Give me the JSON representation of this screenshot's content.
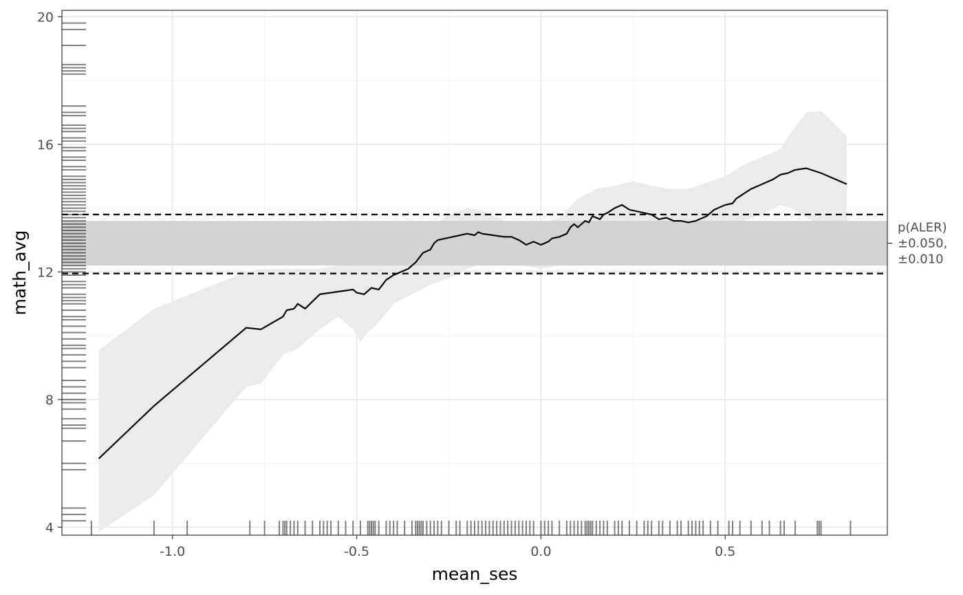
{
  "chart_data": {
    "type": "line",
    "title": "",
    "xlabel": "mean_ses",
    "ylabel": "math_avg",
    "xlim": [
      -1.3,
      0.94
    ],
    "ylim": [
      3.75,
      20.2
    ],
    "x_ticks": [
      -1.0,
      -0.5,
      0.0,
      0.5
    ],
    "x_tick_labels": [
      "-1.0",
      "-0.5",
      "0.0",
      "0.5"
    ],
    "y_ticks": [
      4,
      8,
      12,
      16,
      20
    ],
    "y_tick_labels": [
      "4",
      "8",
      "12",
      "16",
      "20"
    ],
    "grid": true,
    "legend": "none",
    "colors": {
      "line": "#000000",
      "ribbon": "#ebebeb",
      "band": "#d3d3d3",
      "grid_major": "#ebebeb",
      "grid_minor": "#f3f3f3",
      "rug": "#000000"
    },
    "series": [
      {
        "x": [
          -1.2,
          -1.05,
          -0.8,
          -0.76,
          -0.7,
          -0.69,
          -0.67,
          -0.66,
          -0.64,
          -0.6,
          -0.51,
          -0.5,
          -0.48,
          -0.46,
          -0.44,
          -0.42,
          -0.4,
          -0.38,
          -0.36,
          -0.35,
          -0.34,
          -0.33,
          -0.32,
          -0.3,
          -0.29,
          -0.28,
          -0.2,
          -0.18,
          -0.17,
          -0.16,
          -0.13,
          -0.1,
          -0.08,
          -0.06,
          -0.04,
          -0.02,
          0.0,
          0.02,
          0.03,
          0.05,
          0.07,
          0.08,
          0.09,
          0.1,
          0.12,
          0.13,
          0.14,
          0.16,
          0.17,
          0.18,
          0.2,
          0.22,
          0.24,
          0.26,
          0.3,
          0.32,
          0.34,
          0.36,
          0.38,
          0.4,
          0.42,
          0.43,
          0.45,
          0.47,
          0.5,
          0.52,
          0.53,
          0.55,
          0.57,
          0.6,
          0.63,
          0.65,
          0.67,
          0.69,
          0.72,
          0.76,
          0.83
        ],
        "y": [
          6.15,
          7.8,
          10.25,
          10.2,
          10.6,
          10.8,
          10.85,
          11.0,
          10.85,
          11.3,
          11.45,
          11.35,
          11.3,
          11.5,
          11.45,
          11.75,
          11.9,
          12.0,
          12.1,
          12.2,
          12.3,
          12.45,
          12.6,
          12.7,
          12.9,
          13.0,
          13.2,
          13.15,
          13.25,
          13.2,
          13.15,
          13.1,
          13.1,
          13.0,
          12.85,
          12.95,
          12.85,
          12.95,
          13.05,
          13.1,
          13.2,
          13.4,
          13.5,
          13.4,
          13.6,
          13.55,
          13.75,
          13.65,
          13.8,
          13.85,
          14.0,
          14.1,
          13.95,
          13.9,
          13.8,
          13.65,
          13.7,
          13.6,
          13.6,
          13.55,
          13.6,
          13.65,
          13.75,
          13.95,
          14.1,
          14.15,
          14.3,
          14.45,
          14.6,
          14.75,
          14.9,
          15.05,
          15.1,
          15.2,
          15.25,
          15.1,
          14.75
        ]
      }
    ],
    "ribbon": {
      "x": [
        -1.2,
        -1.05,
        -0.8,
        -0.76,
        -0.7,
        -0.66,
        -0.6,
        -0.55,
        -0.51,
        -0.49,
        -0.47,
        -0.45,
        -0.42,
        -0.4,
        -0.35,
        -0.3,
        -0.25,
        -0.2,
        -0.15,
        -0.1,
        -0.05,
        0.0,
        0.05,
        0.1,
        0.15,
        0.2,
        0.25,
        0.3,
        0.35,
        0.4,
        0.45,
        0.5,
        0.55,
        0.6,
        0.65,
        0.68,
        0.72,
        0.76,
        0.83
      ],
      "upper": [
        9.55,
        10.85,
        12.0,
        12.1,
        12.1,
        12.1,
        12.1,
        12.2,
        12.7,
        12.7,
        12.7,
        12.8,
        12.9,
        12.9,
        13.1,
        13.4,
        13.8,
        14.0,
        13.9,
        13.6,
        13.5,
        13.5,
        13.7,
        14.3,
        14.6,
        14.7,
        14.85,
        14.7,
        14.6,
        14.6,
        14.8,
        15.0,
        15.35,
        15.6,
        15.85,
        16.4,
        17.0,
        17.05,
        16.25
      ],
      "lower": [
        3.85,
        5.0,
        8.4,
        8.5,
        9.4,
        9.6,
        10.2,
        10.6,
        10.2,
        9.8,
        10.1,
        10.3,
        10.7,
        11.0,
        11.3,
        11.6,
        11.8,
        12.1,
        12.3,
        12.2,
        12.2,
        12.1,
        12.2,
        12.3,
        12.5,
        12.6,
        12.8,
        13.0,
        13.1,
        13.1,
        13.2,
        13.4,
        13.6,
        13.8,
        14.1,
        14.0,
        13.7,
        13.5,
        13.3
      ]
    },
    "reference_band": {
      "lower": 12.2,
      "upper": 13.6
    },
    "reference_lines": [
      {
        "y": 11.95,
        "style": "dashed"
      },
      {
        "y": 13.8,
        "style": "dashed"
      }
    ],
    "annotations": [
      "p(ALER)",
      "±0.050,",
      "±0.010"
    ],
    "rug_x": [
      -1.22,
      -1.05,
      -0.96,
      -0.79,
      -0.75,
      -0.71,
      -0.7,
      -0.695,
      -0.69,
      -0.68,
      -0.67,
      -0.66,
      -0.64,
      -0.62,
      -0.6,
      -0.59,
      -0.58,
      -0.57,
      -0.55,
      -0.53,
      -0.51,
      -0.49,
      -0.47,
      -0.465,
      -0.46,
      -0.455,
      -0.45,
      -0.44,
      -0.42,
      -0.41,
      -0.4,
      -0.39,
      -0.37,
      -0.35,
      -0.34,
      -0.335,
      -0.33,
      -0.325,
      -0.32,
      -0.31,
      -0.3,
      -0.29,
      -0.28,
      -0.27,
      -0.25,
      -0.23,
      -0.22,
      -0.2,
      -0.19,
      -0.18,
      -0.17,
      -0.16,
      -0.15,
      -0.14,
      -0.13,
      -0.12,
      -0.11,
      -0.1,
      -0.09,
      -0.08,
      -0.07,
      -0.06,
      -0.05,
      -0.04,
      -0.03,
      -0.02,
      0.0,
      0.01,
      0.02,
      0.03,
      0.05,
      0.07,
      0.08,
      0.09,
      0.1,
      0.11,
      0.12,
      0.125,
      0.13,
      0.135,
      0.14,
      0.15,
      0.16,
      0.17,
      0.18,
      0.2,
      0.21,
      0.22,
      0.24,
      0.26,
      0.28,
      0.29,
      0.3,
      0.32,
      0.33,
      0.35,
      0.37,
      0.38,
      0.4,
      0.41,
      0.42,
      0.43,
      0.44,
      0.46,
      0.48,
      0.51,
      0.52,
      0.54,
      0.57,
      0.6,
      0.62,
      0.65,
      0.66,
      0.69,
      0.75,
      0.755,
      0.76,
      0.84
    ],
    "rug_y": [
      4.2,
      4.4,
      4.6,
      5.8,
      6.0,
      6.7,
      7.1,
      7.2,
      7.4,
      7.7,
      7.9,
      8.0,
      8.2,
      8.4,
      8.6,
      9.0,
      9.2,
      9.4,
      9.6,
      9.7,
      9.9,
      10.1,
      10.3,
      10.5,
      10.6,
      10.8,
      11.0,
      11.1,
      11.2,
      11.3,
      11.5,
      11.6,
      11.7,
      11.9,
      12.0,
      12.1,
      12.2,
      12.3,
      12.4,
      12.5,
      12.6,
      12.7,
      12.8,
      12.9,
      13.0,
      13.1,
      13.2,
      13.3,
      13.4,
      13.5,
      13.6,
      13.7,
      13.8,
      13.9,
      14.0,
      14.1,
      14.2,
      14.3,
      14.4,
      14.5,
      14.6,
      14.7,
      14.8,
      14.9,
      15.0,
      15.2,
      15.3,
      15.5,
      15.6,
      15.8,
      15.9,
      16.1,
      16.2,
      16.4,
      16.5,
      16.6,
      16.9,
      17.0,
      17.2,
      18.2,
      18.3,
      18.4,
      18.5,
      19.1,
      19.6,
      19.8
    ]
  }
}
